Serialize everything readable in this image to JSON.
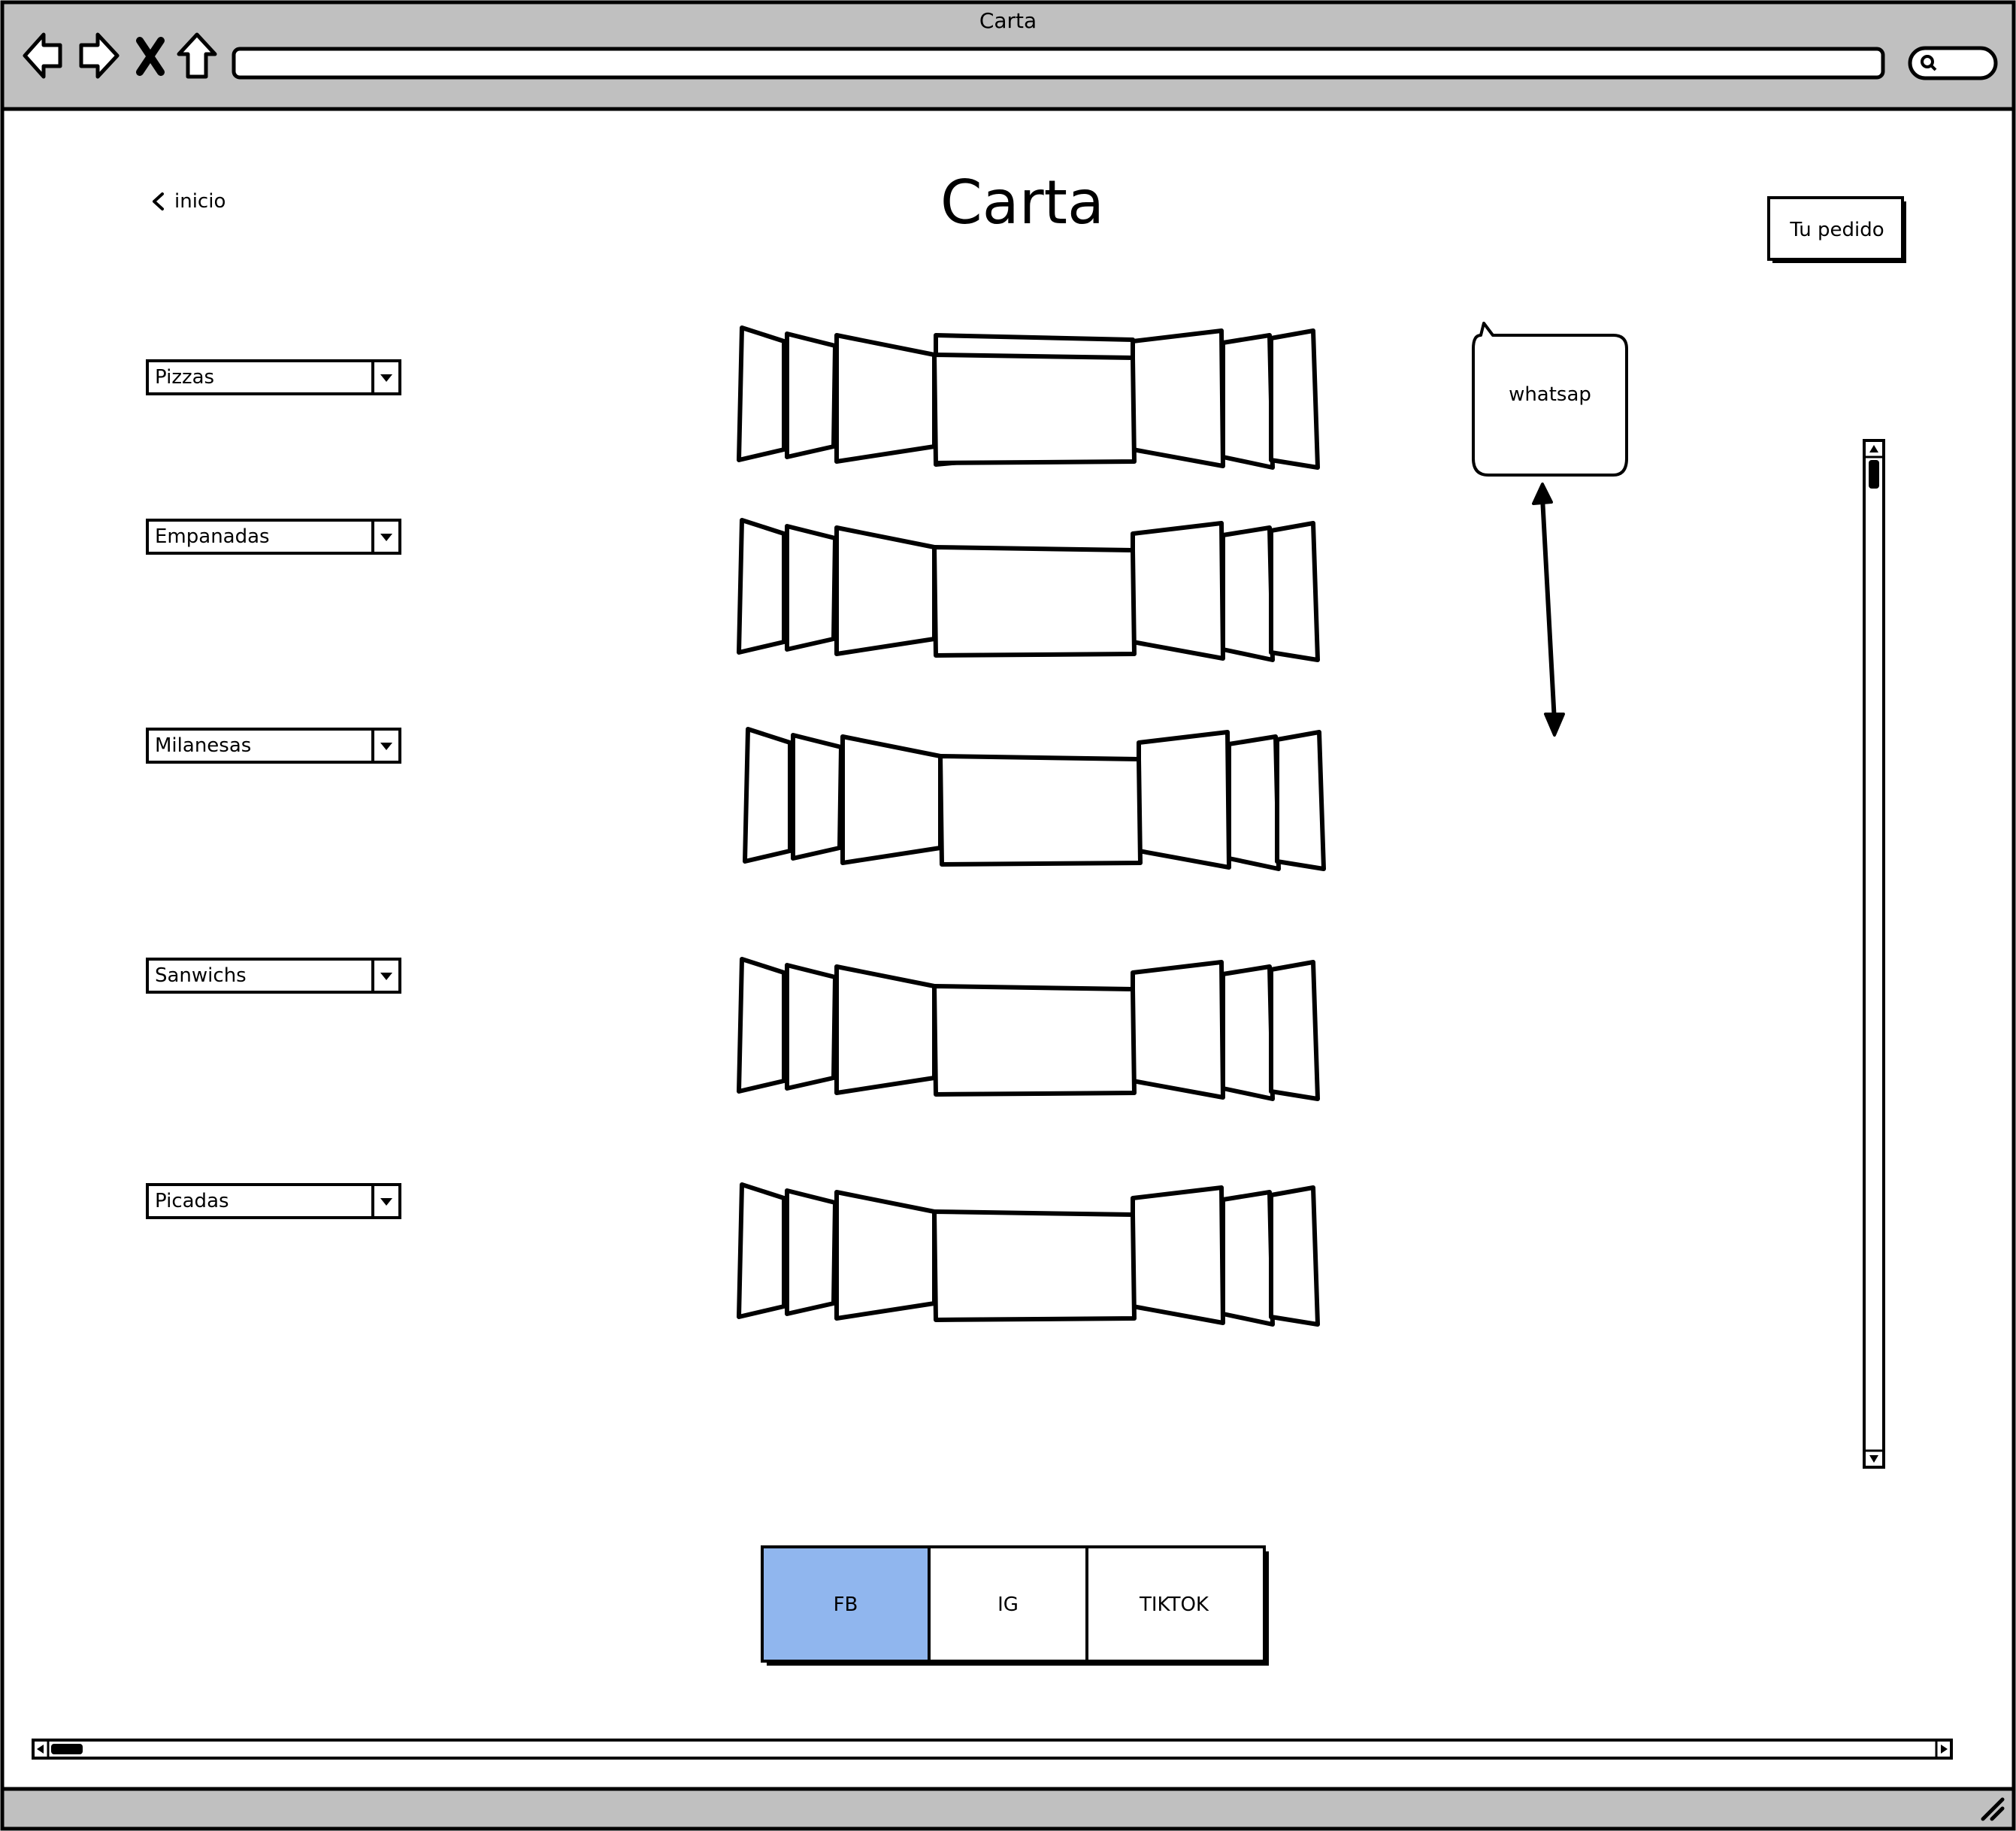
{
  "browser": {
    "title": "Carta",
    "url": "",
    "search": ""
  },
  "header": {
    "back_label": "inicio",
    "title": "Carta",
    "order_button": "Tu pedido"
  },
  "categories": [
    {
      "label": "Pizzas"
    },
    {
      "label": "Empanadas"
    },
    {
      "label": "Milanesas"
    },
    {
      "label": "Sanwichs"
    },
    {
      "label": "Picadas"
    }
  ],
  "whatsapp": {
    "label": "whatsap"
  },
  "social_tabs": [
    {
      "label": "FB",
      "selected": true
    },
    {
      "label": "IG",
      "selected": false
    },
    {
      "label": "TIKTOK",
      "selected": false
    }
  ],
  "colors": {
    "chrome": "#c0c0c0",
    "selected_tab": "#90b6ee",
    "stroke": "#000000"
  }
}
